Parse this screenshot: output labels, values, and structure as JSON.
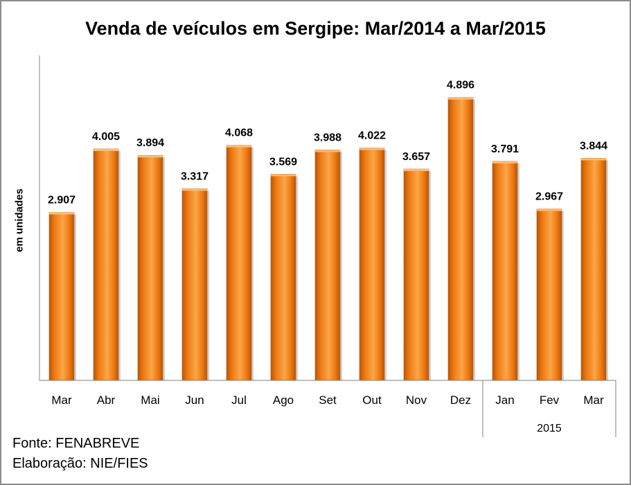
{
  "chart_data": {
    "type": "bar",
    "title": "Venda de veículos em Sergipe: Mar/2014 a Mar/2015",
    "ylabel": "em unidades",
    "categories": [
      "Mar",
      "Abr",
      "Mai",
      "Jun",
      "Jul",
      "Ago",
      "Set",
      "Out",
      "Nov",
      "Dez",
      "Jan",
      "Fev",
      "Mar"
    ],
    "values": [
      2907,
      4005,
      3894,
      3317,
      4068,
      3569,
      3988,
      4022,
      3657,
      4896,
      3791,
      2967,
      3844
    ],
    "data_labels": [
      "2.907",
      "4.005",
      "3.894",
      "3.317",
      "4.068",
      "3.569",
      "3.988",
      "4.022",
      "3.657",
      "4.896",
      "3.791",
      "2.967",
      "3.844"
    ],
    "year_group": {
      "label": "2015",
      "start_index": 10,
      "end_index": 12
    },
    "ylim": [
      0,
      6000
    ],
    "grid": false,
    "legend": "none",
    "bar_color": "#f07a10",
    "bar_dark": "#b8570a",
    "bar_light": "#f9a64a"
  },
  "notes": {
    "source": "Fonte: FENABREVE",
    "elaboration": "Elaboração: NIE/FIES"
  }
}
